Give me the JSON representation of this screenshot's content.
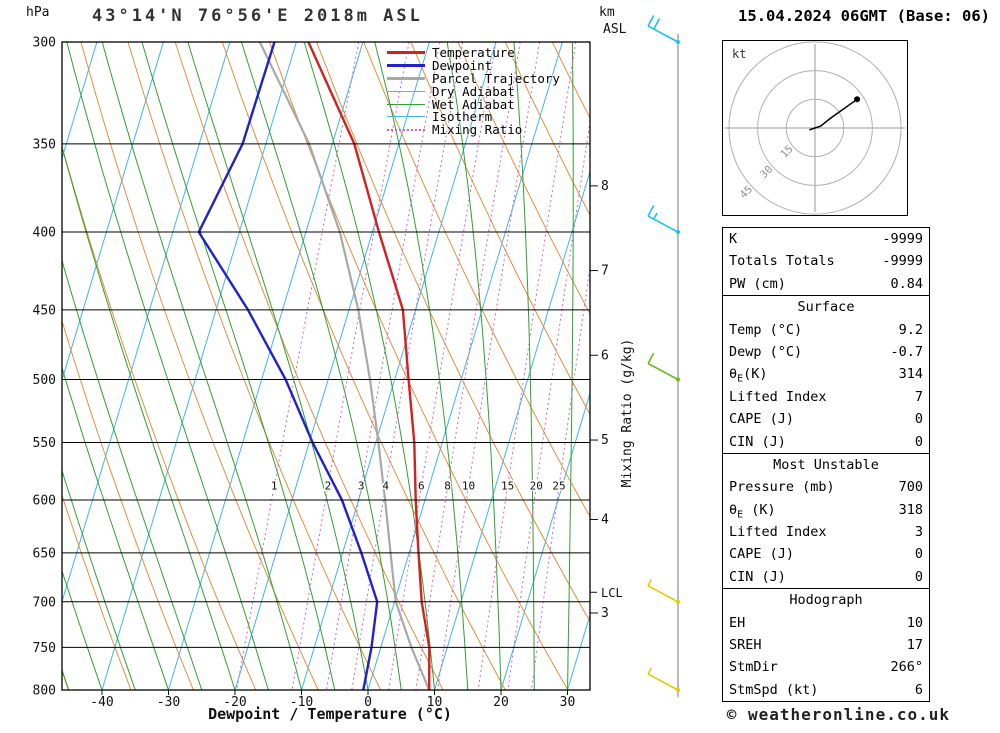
{
  "header": {
    "station_title": "43°14'N 76°56'E 2018m ASL",
    "run_datetime": "15.04.2024 06GMT (Base: 06)"
  },
  "axes": {
    "pressure_unit": "hPa",
    "km_unit_line1": "km",
    "km_unit_line2": "ASL",
    "temp_axis_label": "Dewpoint / Temperature (°C)",
    "mixing_axis_label": "Mixing Ratio (g/kg)",
    "lcl_label": "LCL"
  },
  "chart_data": {
    "type": "skewt-log-p",
    "pressure_levels_hpa": [
      300,
      350,
      400,
      450,
      500,
      550,
      600,
      650,
      700,
      750,
      800
    ],
    "pressure_top_hpa": 300,
    "pressure_bottom_hpa": 800,
    "temp_ticks_c": [
      -40,
      -30,
      -20,
      -10,
      0,
      10,
      20,
      30
    ],
    "km_ticks": [
      {
        "km": 8,
        "p_hpa": 373
      },
      {
        "km": 7,
        "p_hpa": 424
      },
      {
        "km": 6,
        "p_hpa": 482
      },
      {
        "km": 5,
        "p_hpa": 548
      },
      {
        "km": 4,
        "p_hpa": 618
      },
      {
        "km": 3,
        "p_hpa": 712
      }
    ],
    "lcl_p_hpa": 690,
    "isotherms_c": {
      "min": -100,
      "max": 40,
      "step": 10
    },
    "dry_adiabats_theta_c": {
      "min": -40,
      "max": 130,
      "step": 10
    },
    "wet_adiabats_surface_c": {
      "min": -70,
      "max": 45,
      "step": 5
    },
    "mixing_ratio_g_kg": [
      1,
      2,
      3,
      4,
      6,
      8,
      10,
      15,
      20,
      25
    ],
    "mixing_ratio_label_p_hpa": 588,
    "sounding": {
      "pressure_hpa": [
        800,
        750,
        700,
        650,
        600,
        550,
        500,
        450,
        400,
        350,
        300
      ],
      "temperature_c": [
        9.2,
        7.3,
        4.1,
        1.4,
        -1.4,
        -4.2,
        -7.9,
        -11.9,
        -19.0,
        -26.7,
        -38.2
      ],
      "dewpoint_c": [
        -0.7,
        -1.4,
        -2.6,
        -7.2,
        -12.5,
        -19.5,
        -26.4,
        -35.2,
        -46.1,
        -43.5,
        -43.3
      ],
      "parcel_c": [
        9.2,
        4.6,
        0.2,
        -2.8,
        -6.0,
        -9.6,
        -13.7,
        -18.6,
        -24.9,
        -33.5,
        -45.5
      ]
    },
    "wind_barbs": [
      {
        "p_hpa": 300,
        "speed_kt": 20,
        "color": "#18c2e8"
      },
      {
        "p_hpa": 400,
        "speed_kt": 15,
        "color": "#18c2e8"
      },
      {
        "p_hpa": 500,
        "speed_kt": 10,
        "color": "#68bc20"
      },
      {
        "p_hpa": 700,
        "speed_kt": 5,
        "color": "#ddcc00"
      },
      {
        "p_hpa": 800,
        "speed_kt": 5,
        "color": "#ddcc00"
      }
    ],
    "colors": {
      "temperature": "#d42020",
      "dewpoint": "#2020cc",
      "parcel": "#a8a8a8",
      "dry_adiabat": "#e09040",
      "wet_adiabat": "#2fa02f",
      "isotherm": "#40b6e6",
      "mixing_ratio": "#d060d0",
      "grid": "#000000"
    },
    "legend": [
      {
        "id": "temperature",
        "label": "Temperature",
        "thick": 3,
        "dash": "solid"
      },
      {
        "id": "dewpoint",
        "label": "Dewpoint",
        "thick": 3,
        "dash": "solid"
      },
      {
        "id": "parcel",
        "label": "Parcel Trajectory",
        "thick": 3,
        "dash": "solid"
      },
      {
        "id": "dry_adiabat",
        "label": "Dry Adiabat",
        "thick": 1.5,
        "dash": "solid"
      },
      {
        "id": "wet_adiabat",
        "label": "Wet Adiabat",
        "thick": 1.5,
        "dash": "solid"
      },
      {
        "id": "isotherm",
        "label": "Isotherm",
        "thick": 1.5,
        "dash": "solid"
      },
      {
        "id": "mixing_ratio",
        "label": "Mixing Ratio",
        "thick": 2,
        "dash": "dotted"
      }
    ]
  },
  "hodograph": {
    "unit_label": "kt",
    "rings_kt": [
      15,
      30,
      45
    ],
    "trace_kt": [
      [
        -3,
        -1
      ],
      [
        0,
        0
      ],
      [
        3,
        1
      ],
      [
        8,
        5
      ],
      [
        22,
        15
      ]
    ]
  },
  "tables": {
    "groups": [
      {
        "header": null,
        "rows": [
          [
            "K",
            "-9999"
          ],
          [
            "Totals Totals",
            "-9999"
          ],
          [
            "PW (cm)",
            "0.84"
          ]
        ]
      },
      {
        "header": "Surface",
        "rows": [
          [
            "Temp (°C)",
            "9.2"
          ],
          [
            "Dewp (°C)",
            "-0.7"
          ],
          [
            "θ_E(K)",
            "314"
          ],
          [
            "Lifted Index",
            "7"
          ],
          [
            "CAPE (J)",
            "0"
          ],
          [
            "CIN (J)",
            "0"
          ]
        ]
      },
      {
        "header": "Most Unstable",
        "rows": [
          [
            "Pressure (mb)",
            "700"
          ],
          [
            "θ_E (K)",
            "318"
          ],
          [
            "Lifted Index",
            "3"
          ],
          [
            "CAPE (J)",
            "0"
          ],
          [
            "CIN (J)",
            "0"
          ]
        ]
      },
      {
        "header": "Hodograph",
        "rows": [
          [
            "EH",
            "10"
          ],
          [
            "SREH",
            "17"
          ],
          [
            "StmDir",
            "266°"
          ],
          [
            "StmSpd (kt)",
            "6"
          ]
        ]
      }
    ]
  },
  "footer": {
    "credit": "© weatheronline.co.uk"
  }
}
